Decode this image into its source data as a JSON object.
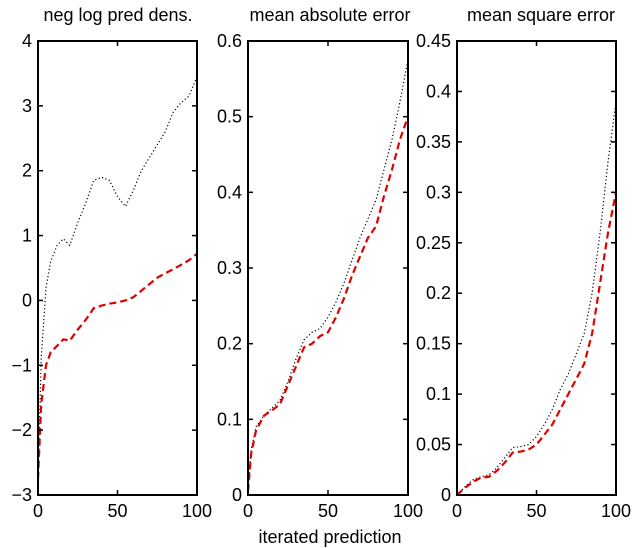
{
  "xlabel_shared": "iterated prediction",
  "colors": {
    "dotted": "#000000",
    "dashed": "#e00000",
    "axes": "#000000"
  },
  "chart_data": [
    {
      "type": "line",
      "title": "neg log pred dens.",
      "xlim": [
        0,
        100
      ],
      "ylim": [
        -3,
        4
      ],
      "xticks": [
        0,
        50,
        100
      ],
      "xtick_labels": [
        "0",
        "50",
        "100"
      ],
      "yticks": [
        -3,
        -2,
        -1,
        0,
        1,
        2,
        3,
        4
      ],
      "ytick_labels": [
        "−3",
        "−2",
        "−1",
        "0",
        "1",
        "2",
        "3",
        "4"
      ],
      "grid": false,
      "series": [
        {
          "style": "dotted",
          "color": "#000000",
          "x": [
            0,
            2,
            5,
            8,
            12,
            16,
            20,
            25,
            30,
            35,
            40,
            45,
            50,
            55,
            60,
            65,
            70,
            75,
            80,
            85,
            90,
            95,
            100
          ],
          "y": [
            -2.8,
            -0.9,
            0.2,
            0.6,
            0.85,
            0.95,
            0.85,
            1.2,
            1.5,
            1.85,
            1.9,
            1.85,
            1.6,
            1.45,
            1.7,
            2.0,
            2.2,
            2.4,
            2.6,
            2.9,
            3.05,
            3.15,
            3.45
          ]
        },
        {
          "style": "dashed",
          "color": "#e00000",
          "x": [
            0,
            2,
            5,
            8,
            12,
            16,
            20,
            25,
            30,
            35,
            40,
            45,
            50,
            55,
            60,
            65,
            70,
            75,
            80,
            85,
            90,
            95,
            100
          ],
          "y": [
            -2.75,
            -1.6,
            -1.0,
            -0.8,
            -0.7,
            -0.6,
            -0.62,
            -0.45,
            -0.3,
            -0.12,
            -0.08,
            -0.05,
            -0.03,
            0.0,
            0.05,
            0.15,
            0.25,
            0.35,
            0.42,
            0.48,
            0.55,
            0.62,
            0.72
          ]
        }
      ]
    },
    {
      "type": "line",
      "title": "mean absolute error",
      "xlim": [
        0,
        100
      ],
      "ylim": [
        0,
        0.6
      ],
      "xticks": [
        0,
        50,
        100
      ],
      "xtick_labels": [
        "0",
        "50",
        "100"
      ],
      "yticks": [
        0,
        0.1,
        0.2,
        0.3,
        0.4,
        0.5,
        0.6
      ],
      "ytick_labels": [
        "0",
        "0.1",
        "0.2",
        "0.3",
        "0.4",
        "0.5",
        "0.6"
      ],
      "grid": false,
      "series": [
        {
          "style": "dotted",
          "color": "#000000",
          "x": [
            0,
            2,
            5,
            10,
            15,
            20,
            25,
            30,
            35,
            40,
            45,
            50,
            55,
            60,
            65,
            70,
            75,
            80,
            85,
            90,
            95,
            100
          ],
          "y": [
            0.01,
            0.06,
            0.09,
            0.105,
            0.115,
            0.125,
            0.15,
            0.18,
            0.205,
            0.215,
            0.22,
            0.235,
            0.255,
            0.28,
            0.31,
            0.34,
            0.365,
            0.39,
            0.43,
            0.47,
            0.52,
            0.575
          ]
        },
        {
          "style": "dashed",
          "color": "#e00000",
          "x": [
            0,
            2,
            5,
            10,
            15,
            20,
            25,
            30,
            35,
            40,
            45,
            50,
            55,
            60,
            65,
            70,
            75,
            80,
            85,
            90,
            95,
            100
          ],
          "y": [
            0.005,
            0.055,
            0.085,
            0.105,
            0.112,
            0.12,
            0.145,
            0.17,
            0.195,
            0.2,
            0.21,
            0.215,
            0.235,
            0.26,
            0.29,
            0.315,
            0.34,
            0.355,
            0.395,
            0.43,
            0.47,
            0.5
          ]
        }
      ]
    },
    {
      "type": "line",
      "title": "mean square error",
      "xlim": [
        0,
        100
      ],
      "ylim": [
        0,
        0.45
      ],
      "xticks": [
        0,
        50,
        100
      ],
      "xtick_labels": [
        "0",
        "50",
        "100"
      ],
      "yticks": [
        0,
        0.05,
        0.1,
        0.15,
        0.2,
        0.25,
        0.3,
        0.35,
        0.4,
        0.45
      ],
      "ytick_labels": [
        "0",
        "0.05",
        "0.1",
        "0.15",
        "0.2",
        "0.25",
        "0.3",
        "0.35",
        "0.4",
        "0.45"
      ],
      "grid": false,
      "series": [
        {
          "style": "dotted",
          "color": "#000000",
          "x": [
            0,
            5,
            10,
            15,
            20,
            25,
            30,
            35,
            40,
            45,
            50,
            55,
            60,
            65,
            70,
            75,
            80,
            85,
            90,
            95,
            100
          ],
          "y": [
            0.0,
            0.008,
            0.015,
            0.018,
            0.02,
            0.027,
            0.037,
            0.047,
            0.048,
            0.05,
            0.058,
            0.07,
            0.085,
            0.105,
            0.12,
            0.14,
            0.16,
            0.2,
            0.26,
            0.33,
            0.39
          ]
        },
        {
          "style": "dashed",
          "color": "#e00000",
          "x": [
            0,
            5,
            10,
            15,
            20,
            25,
            30,
            35,
            40,
            45,
            50,
            55,
            60,
            65,
            70,
            75,
            80,
            85,
            90,
            95,
            100
          ],
          "y": [
            0.0,
            0.007,
            0.013,
            0.017,
            0.018,
            0.024,
            0.032,
            0.042,
            0.043,
            0.045,
            0.05,
            0.06,
            0.07,
            0.085,
            0.1,
            0.115,
            0.13,
            0.16,
            0.21,
            0.26,
            0.3
          ]
        }
      ]
    }
  ]
}
